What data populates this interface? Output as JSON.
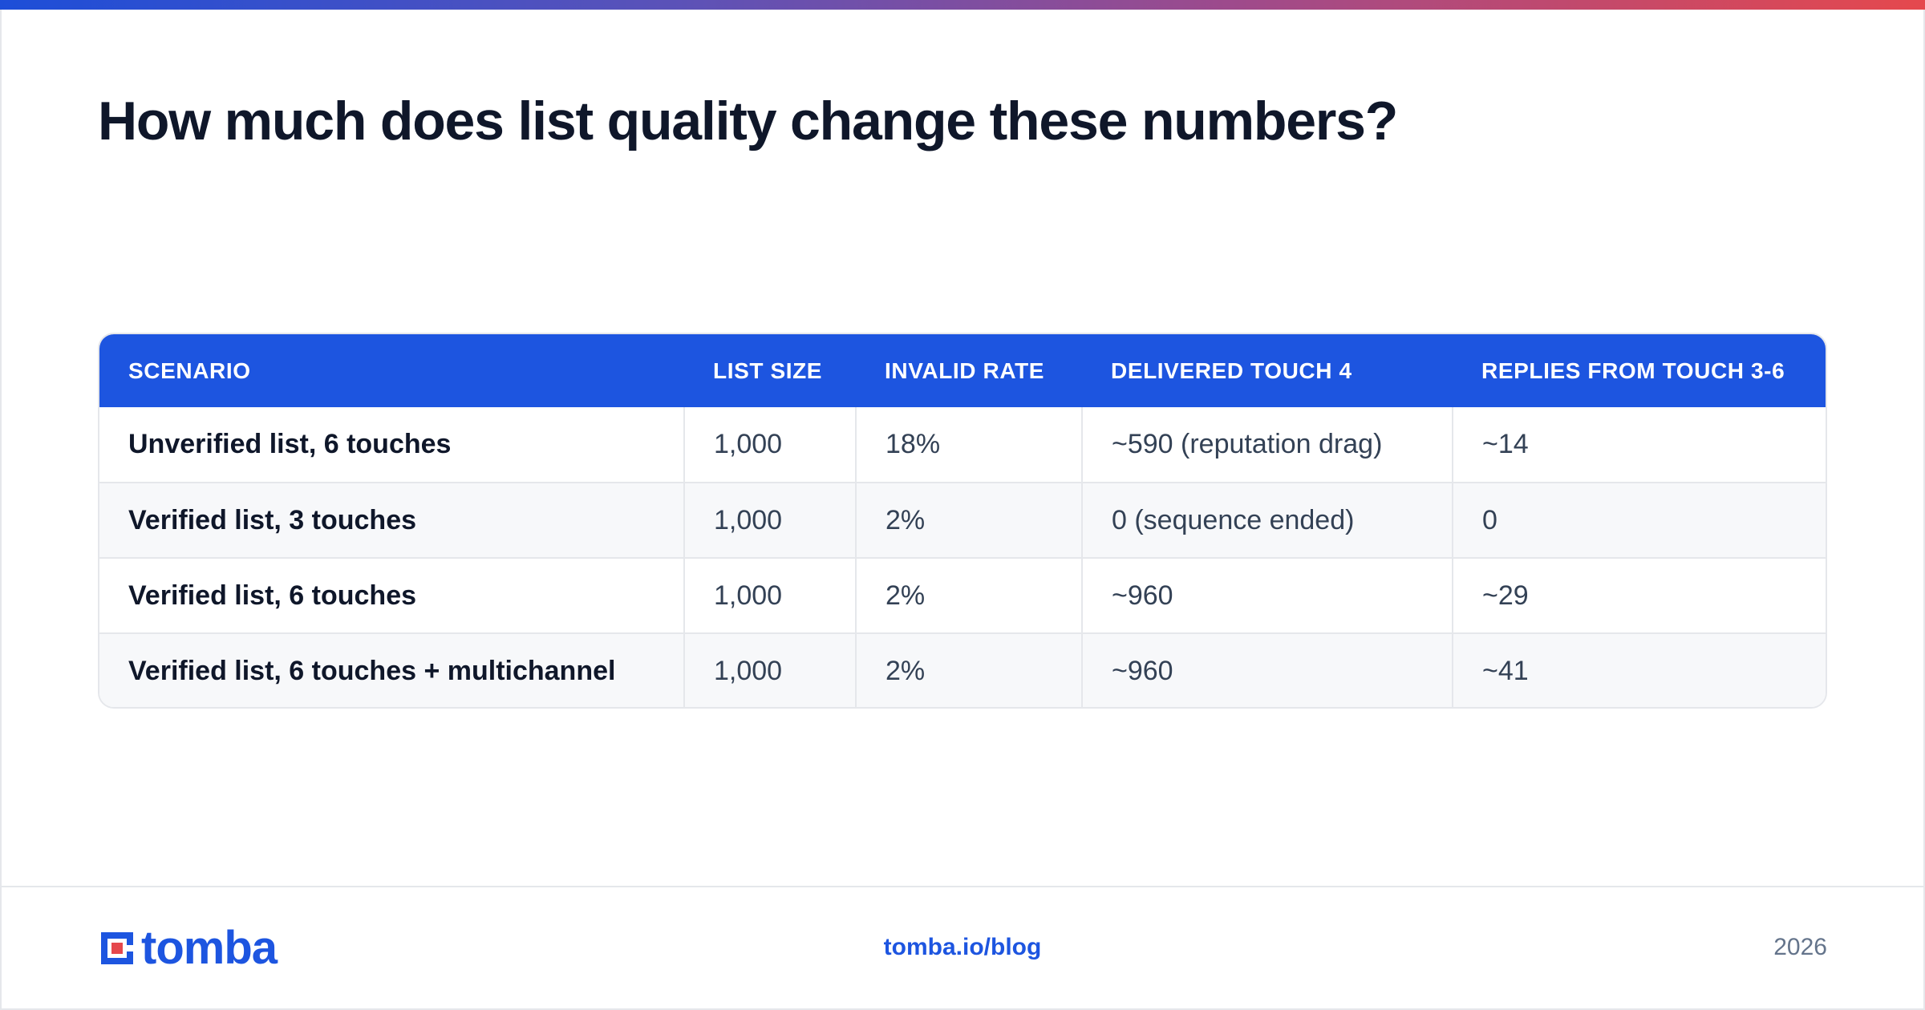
{
  "header": {
    "title": "How much does list quality change these numbers?"
  },
  "table": {
    "columns": [
      "SCENARIO",
      "LIST SIZE",
      "INVALID RATE",
      "DELIVERED TOUCH 4",
      "REPLIES FROM TOUCH 3-6"
    ],
    "rows": [
      [
        "Unverified list, 6 touches",
        "1,000",
        "18%",
        "~590 (reputation drag)",
        "~14"
      ],
      [
        "Verified list, 3 touches",
        "1,000",
        "2%",
        "0 (sequence ended)",
        "0"
      ],
      [
        "Verified list, 6 touches",
        "1,000",
        "2%",
        "~960",
        "~29"
      ],
      [
        "Verified list, 6 touches + multichannel",
        "1,000",
        "2%",
        "~960",
        "~41"
      ]
    ]
  },
  "footer": {
    "logo_text": "tomba",
    "link": "tomba.io/blog",
    "year": "2026"
  },
  "colors": {
    "brand_blue": "#1d55e0",
    "accent_red": "#e5484d",
    "title_text": "#0f172a"
  },
  "icons": {
    "logo": "tomba-logo-icon"
  }
}
